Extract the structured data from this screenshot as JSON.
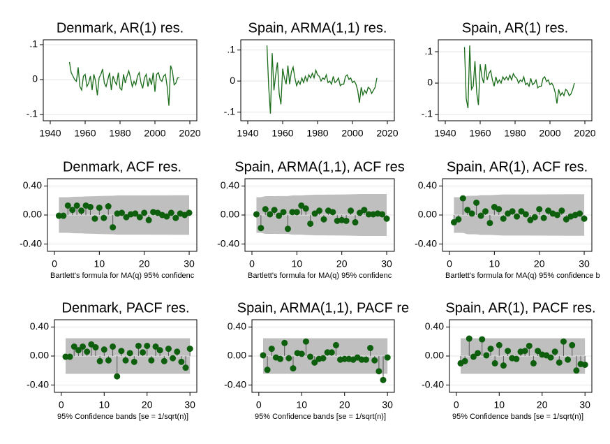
{
  "chart_data": [
    {
      "type": "line",
      "title": "Denmark, AR(1) res.",
      "color": "#1a6b1a",
      "x": [
        1951,
        1952,
        1953,
        1954,
        1955,
        1956,
        1957,
        1958,
        1959,
        1960,
        1961,
        1962,
        1963,
        1964,
        1965,
        1966,
        1967,
        1968,
        1969,
        1970,
        1971,
        1972,
        1973,
        1974,
        1975,
        1976,
        1977,
        1978,
        1979,
        1980,
        1981,
        1982,
        1983,
        1984,
        1985,
        1986,
        1987,
        1988,
        1989,
        1990,
        1991,
        1992,
        1993,
        1994,
        1995,
        1996,
        1997,
        1998,
        1999,
        2000,
        2001,
        2002,
        2003,
        2004,
        2005,
        2006,
        2007,
        2008,
        2009,
        2010,
        2011,
        2012,
        2013,
        2014
      ],
      "values": [
        0.05,
        0.02,
        0.01,
        0,
        -0.005,
        0.035,
        -0.02,
        -0.03,
        0.01,
        0.015,
        -0.02,
        -0.01,
        0.01,
        -0.03,
        0.015,
        -0.005,
        -0.045,
        0.005,
        0.015,
        0.03,
        -0.01,
        -0.02,
        0,
        0.02,
        -0.03,
        0.01,
        -0.005,
        -0.015,
        0.02,
        -0.025,
        -0.03,
        0.015,
        -0.01,
        0.01,
        0.025,
        0.005,
        -0.02,
        -0.005,
        -0.015,
        0.01,
        0.02,
        -0.01,
        -0.025,
        0.005,
        0.015,
        -0.02,
        0.005,
        -0.015,
        0.02,
        -0.035,
        0.015,
        0.02,
        0,
        -0.005,
        0.01,
        0.015,
        -0.02,
        -0.075,
        0.04,
        0.025,
        -0.015,
        -0.01,
        0.005,
        0.005
      ],
      "xlim": [
        1936,
        2024
      ],
      "xticks": [
        1940,
        1960,
        1980,
        2000,
        2020
      ],
      "ylim": [
        -0.118,
        0.114
      ],
      "yticks": [
        {
          "value": 0.1,
          "label": ".1"
        },
        0,
        {
          "value": -0.1,
          "label": "-.1"
        }
      ],
      "grid": true
    },
    {
      "type": "line",
      "title": "Spain, ARMA(1,1) res.",
      "color": "#1a6b1a",
      "x": [
        1951,
        1952,
        1953,
        1954,
        1955,
        1956,
        1957,
        1958,
        1959,
        1960,
        1961,
        1962,
        1963,
        1964,
        1965,
        1966,
        1967,
        1968,
        1969,
        1970,
        1971,
        1972,
        1973,
        1974,
        1975,
        1976,
        1977,
        1978,
        1979,
        1980,
        1981,
        1982,
        1983,
        1984,
        1985,
        1986,
        1987,
        1988,
        1989,
        1990,
        1991,
        1992,
        1993,
        1994,
        1995,
        1996,
        1997,
        1998,
        1999,
        2000,
        2001,
        2002,
        2003,
        2004,
        2005,
        2006,
        2007,
        2008,
        2009,
        2010,
        2011,
        2012,
        2013,
        2014
      ],
      "values": [
        0.115,
        -0.02,
        -0.105,
        0.09,
        -0.03,
        0.02,
        0.06,
        -0.04,
        -0.075,
        0.04,
        0.01,
        -0.01,
        0.05,
        -0.01,
        0.03,
        0.045,
        0.01,
        -0.015,
        0,
        -0.01,
        0.01,
        -0.005,
        0.015,
        0,
        0.02,
        0.01,
        0.025,
        0.01,
        0.035,
        0.02,
        0.015,
        0,
        0.01,
        0.005,
        0.02,
        -0.005,
        0,
        -0.01,
        0.015,
        -0.005,
        0,
        0.01,
        -0.015,
        -0.01,
        -0.01,
        0.015,
        0.02,
        0.005,
        0.01,
        -0.005,
        0,
        -0.01,
        -0.03,
        -0.07,
        -0.02,
        -0.045,
        -0.03,
        -0.04,
        -0.02,
        -0.025,
        -0.04,
        -0.03,
        -0.02,
        0.01
      ],
      "xlim": [
        1936,
        2024
      ],
      "xticks": [
        1940,
        1960,
        1980,
        2000,
        2020
      ],
      "ylim": [
        -0.128,
        0.133
      ],
      "yticks": [
        {
          "value": 0.1,
          "label": ".1"
        },
        0,
        {
          "value": -0.1,
          "label": "-.1"
        }
      ],
      "grid": true
    },
    {
      "type": "line",
      "title": "Spain, AR(1) res.",
      "color": "#1a6b1a",
      "x": [
        1951,
        1952,
        1953,
        1954,
        1955,
        1956,
        1957,
        1958,
        1959,
        1960,
        1961,
        1962,
        1963,
        1964,
        1965,
        1966,
        1967,
        1968,
        1969,
        1970,
        1971,
        1972,
        1973,
        1974,
        1975,
        1976,
        1977,
        1978,
        1979,
        1980,
        1981,
        1982,
        1983,
        1984,
        1985,
        1986,
        1987,
        1988,
        1989,
        1990,
        1991,
        1992,
        1993,
        1994,
        1995,
        1996,
        1997,
        1998,
        1999,
        2000,
        2001,
        2002,
        2003,
        2004,
        2005,
        2006,
        2007,
        2008,
        2009,
        2010,
        2011,
        2012,
        2013,
        2014
      ],
      "values": [
        0.115,
        -0.05,
        -0.08,
        0.12,
        -0.02,
        -0.01,
        0.07,
        -0.03,
        -0.07,
        0.06,
        0.02,
        0,
        0.06,
        0.01,
        0.03,
        0.04,
        0.01,
        -0.01,
        0.02,
        0,
        0.01,
        0,
        0.02,
        0.01,
        0.02,
        0.01,
        0.025,
        0.01,
        0.03,
        0.02,
        0.015,
        0,
        0.01,
        0.005,
        0.02,
        -0.005,
        0,
        -0.01,
        0.015,
        -0.005,
        0,
        0.01,
        -0.015,
        -0.01,
        -0.01,
        0.015,
        0.02,
        0.005,
        0.01,
        -0.005,
        0,
        -0.01,
        -0.03,
        -0.065,
        -0.02,
        -0.04,
        -0.03,
        -0.04,
        -0.02,
        -0.025,
        -0.04,
        -0.035,
        -0.02,
        0
      ],
      "xlim": [
        1936,
        2024
      ],
      "xticks": [
        1940,
        1960,
        1980,
        2000,
        2020
      ],
      "ylim": [
        -0.12,
        0.138
      ],
      "yticks": [
        {
          "value": 0.1,
          "label": ".1"
        },
        0,
        {
          "value": -0.1,
          "label": "-.1"
        }
      ],
      "grid": true
    },
    {
      "type": "stem",
      "title": "Denmark, ACF res.",
      "note": "Bartlett's formula for MA(q) 95% confidenc",
      "color": "#0d5e0d",
      "band_color": "#bfbfbf",
      "x": [
        1,
        2,
        3,
        4,
        5,
        6,
        7,
        8,
        9,
        10,
        11,
        12,
        13,
        14,
        15,
        16,
        17,
        18,
        19,
        20,
        21,
        22,
        23,
        24,
        25,
        26,
        27,
        28,
        29,
        30
      ],
      "values": [
        -0.01,
        -0.01,
        0.13,
        0.07,
        0.13,
        0.06,
        0.13,
        0.11,
        -0.05,
        0.1,
        -0.04,
        0.12,
        -0.17,
        0.02,
        0.03,
        -0.03,
        0.01,
        0.02,
        -0.03,
        0.03,
        -0.07,
        0.04,
        0.03,
        0,
        -0.02,
        0.03,
        -0.04,
        0.02,
        0,
        0.03
      ],
      "band_halfwidth": [
        0.245,
        0.245,
        0.245,
        0.25,
        0.252,
        0.253,
        0.256,
        0.257,
        0.26,
        0.261,
        0.263,
        0.264,
        0.266,
        0.27,
        0.27,
        0.27,
        0.27,
        0.27,
        0.27,
        0.27,
        0.271,
        0.272,
        0.272,
        0.272,
        0.272,
        0.272,
        0.273,
        0.273,
        0.273,
        0.273
      ],
      "xlim": [
        -1.55,
        31.7
      ],
      "xticks": [
        0,
        10,
        20,
        30
      ],
      "ylim": [
        -0.5,
        0.5
      ],
      "yticks": [
        {
          "value": 0.4,
          "label": "0.40"
        },
        {
          "value": 0,
          "label": "0.00"
        },
        {
          "value": -0.4,
          "label": "-0.40"
        }
      ],
      "grid": true
    },
    {
      "type": "stem",
      "title": "Spain, ARMA(1,1), ACF res",
      "note": "Bartlett's formula for MA(q) 95% confidenc",
      "color": "#0d5e0d",
      "band_color": "#bfbfbf",
      "x": [
        1,
        2,
        3,
        4,
        5,
        6,
        7,
        8,
        9,
        10,
        11,
        12,
        13,
        14,
        15,
        16,
        17,
        18,
        19,
        20,
        21,
        22,
        23,
        24,
        25,
        26,
        27,
        28,
        29,
        30
      ],
      "values": [
        0.01,
        -0.18,
        0.08,
        0.01,
        0.07,
        -0.01,
        0.04,
        -0.19,
        0.04,
        0.04,
        0.13,
        0.09,
        -0.12,
        0.02,
        0.06,
        -0.06,
        0.06,
        0.04,
        -0.08,
        -0.07,
        -0.08,
        0.06,
        -0.1,
        0.03,
        0.07,
        0.01,
        0.01,
        0.02,
        0.01,
        -0.05
      ],
      "band_halfwidth": [
        0.245,
        0.245,
        0.26,
        0.26,
        0.26,
        0.261,
        0.261,
        0.261,
        0.27,
        0.27,
        0.27,
        0.275,
        0.277,
        0.28,
        0.28,
        0.28,
        0.281,
        0.281,
        0.282,
        0.283,
        0.284,
        0.285,
        0.286,
        0.288,
        0.288,
        0.289,
        0.289,
        0.289,
        0.289,
        0.289
      ],
      "xlim": [
        -1.55,
        31.7
      ],
      "xticks": [
        0,
        10,
        20,
        30
      ],
      "ylim": [
        -0.5,
        0.5
      ],
      "yticks": [
        {
          "value": 0.4,
          "label": "0.40"
        },
        {
          "value": 0,
          "label": "0.00"
        },
        {
          "value": -0.4,
          "label": "-0.40"
        }
      ],
      "grid": true
    },
    {
      "type": "stem",
      "title": "Spain, AR(1), ACF res.",
      "note": "Bartlett's formula for MA(q) 95% confidence b",
      "color": "#0d5e0d",
      "band_color": "#bfbfbf",
      "x": [
        1,
        2,
        3,
        4,
        5,
        6,
        7,
        8,
        9,
        10,
        11,
        12,
        13,
        14,
        15,
        16,
        17,
        18,
        19,
        20,
        21,
        22,
        23,
        24,
        25,
        26,
        27,
        28,
        29,
        30
      ],
      "values": [
        -0.1,
        -0.06,
        0.23,
        0.07,
        0.02,
        0.17,
        -0.01,
        0.05,
        -0.11,
        0.11,
        0.08,
        -0.05,
        0.02,
        0.05,
        -0.02,
        0.05,
        0.01,
        -0.07,
        -0.03,
        0.08,
        -0.04,
        0.06,
        0.02,
        0,
        0.06,
        -0.06,
        -0.02,
        0,
        0.02,
        -0.05
      ],
      "band_halfwidth": [
        0.245,
        0.245,
        0.246,
        0.265,
        0.266,
        0.266,
        0.274,
        0.274,
        0.274,
        0.277,
        0.28,
        0.282,
        0.282,
        0.282,
        0.283,
        0.283,
        0.283,
        0.283,
        0.284,
        0.284,
        0.284,
        0.285,
        0.285,
        0.285,
        0.285,
        0.286,
        0.286,
        0.286,
        0.286,
        0.286
      ],
      "xlim": [
        -1.55,
        31.7
      ],
      "xticks": [
        0,
        10,
        20,
        30
      ],
      "ylim": [
        -0.5,
        0.5
      ],
      "yticks": [
        {
          "value": 0.4,
          "label": "0.40"
        },
        {
          "value": 0,
          "label": "0.00"
        },
        {
          "value": -0.4,
          "label": "-0.40"
        }
      ],
      "grid": true
    },
    {
      "type": "stem",
      "title": "Denmark, PACF res.",
      "note": "95% Confidence bands [se = 1/sqrt(n)]",
      "color": "#0d5e0d",
      "band_color": "#bfbfbf",
      "x": [
        1,
        2,
        3,
        4,
        5,
        6,
        7,
        8,
        9,
        10,
        11,
        12,
        13,
        14,
        15,
        16,
        17,
        18,
        19,
        20,
        21,
        22,
        23,
        24,
        25,
        26,
        27,
        28,
        29,
        30
      ],
      "values": [
        -0.01,
        -0.01,
        0.13,
        0.08,
        0.13,
        0.06,
        0.16,
        0.12,
        -0.07,
        0.09,
        -0.06,
        0.13,
        -0.28,
        0.07,
        -0.06,
        0.04,
        -0.08,
        0.14,
        0.05,
        0.14,
        -0.06,
        0.13,
        0.08,
        -0.07,
        0.1,
        -0.03,
        0.06,
        -0.08,
        -0.16,
        0.1
      ],
      "band_halfwidth": 0.245,
      "xlim": [
        -1.6,
        31.6
      ],
      "xticks": [
        0,
        10,
        20,
        30
      ],
      "ylim": [
        -0.5,
        0.5
      ],
      "yticks": [
        {
          "value": 0.4,
          "label": "0.40"
        },
        {
          "value": 0,
          "label": "0.00"
        },
        {
          "value": -0.4,
          "label": "-0.40"
        }
      ],
      "grid": true
    },
    {
      "type": "stem",
      "title": "Spain, ARMA(1,1), PACF re",
      "note": "95% Confidence bands [se = 1/sqrt(n)]",
      "color": "#0d5e0d",
      "band_color": "#bfbfbf",
      "x": [
        1,
        2,
        3,
        4,
        5,
        6,
        7,
        8,
        9,
        10,
        11,
        12,
        13,
        14,
        15,
        16,
        17,
        18,
        19,
        20,
        21,
        22,
        23,
        24,
        25,
        26,
        27,
        28,
        29,
        30
      ],
      "values": [
        0.01,
        -0.19,
        0.1,
        -0.02,
        -0.04,
        0.18,
        -0.03,
        -0.17,
        0.04,
        0.03,
        0.2,
        -0.01,
        -0.09,
        -0.04,
        -0.03,
        0.05,
        0.05,
        0.15,
        -0.05,
        -0.04,
        -0.04,
        -0.05,
        -0.02,
        -0.05,
        -0.05,
        0.11,
        -0.06,
        -0.21,
        -0.33,
        -0.02
      ],
      "band_halfwidth": 0.245,
      "xlim": [
        -1.6,
        31.6
      ],
      "xticks": [
        0,
        10,
        20,
        30
      ],
      "ylim": [
        -0.5,
        0.5
      ],
      "yticks": [
        {
          "value": 0.4,
          "label": "0.40"
        },
        {
          "value": 0,
          "label": "0.00"
        },
        {
          "value": -0.4,
          "label": "-0.40"
        }
      ],
      "grid": true
    },
    {
      "type": "stem",
      "title": "Spain, AR(1), PACF res.",
      "note": "95% Confidence bands [se = 1/sqrt(n)]",
      "color": "#0d5e0d",
      "band_color": "#bfbfbf",
      "x": [
        1,
        2,
        3,
        4,
        5,
        6,
        7,
        8,
        9,
        10,
        11,
        12,
        13,
        14,
        15,
        16,
        17,
        18,
        19,
        20,
        21,
        22,
        23,
        24,
        25,
        26,
        27,
        28,
        29,
        30
      ],
      "values": [
        -0.1,
        -0.07,
        0.24,
        -0.01,
        0.04,
        0.23,
        0.01,
        0.1,
        -0.1,
        0.15,
        -0.13,
        0.07,
        -0.03,
        -0.04,
        0.06,
        0.07,
        0.14,
        -0.1,
        0.07,
        0.02,
        0.01,
        -0.02,
        0.06,
        -0.09,
        0.2,
        -0.05,
        0.15,
        -0.2,
        -0.11,
        -0.12
      ],
      "band_halfwidth": 0.245,
      "xlim": [
        -1.6,
        31.6
      ],
      "xticks": [
        0,
        10,
        20,
        30
      ],
      "ylim": [
        -0.5,
        0.5
      ],
      "yticks": [
        {
          "value": 0.4,
          "label": "0.40"
        },
        {
          "value": 0,
          "label": "0.00"
        },
        {
          "value": -0.4,
          "label": "-0.40"
        }
      ],
      "grid": true
    }
  ]
}
